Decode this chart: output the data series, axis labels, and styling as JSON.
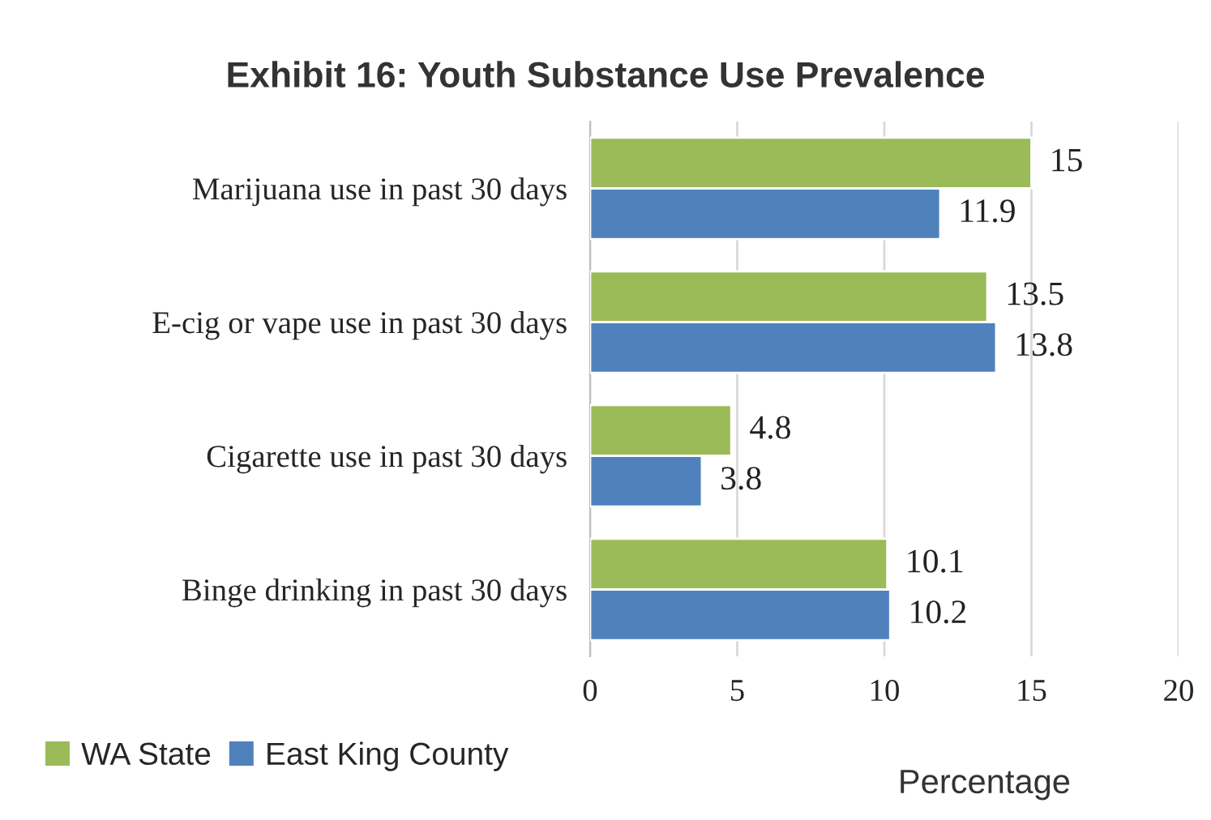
{
  "chart_data": {
    "type": "bar",
    "orientation": "horizontal",
    "title": "Exhibit 16: Youth Substance Use Prevalence",
    "xlabel": "Percentage",
    "categories": [
      "Marijuana use in past 30 days",
      "E-cig or vape use in past 30 days",
      "Cigarette use in past 30 days",
      "Binge drinking in past 30 days"
    ],
    "series": [
      {
        "name": "WA State",
        "color": "#9bbb59",
        "values": [
          15,
          13.5,
          4.8,
          10.1
        ]
      },
      {
        "name": "East King County",
        "color": "#4f81bd",
        "values": [
          11.9,
          13.8,
          3.8,
          10.2
        ]
      }
    ],
    "xlim": [
      0,
      20
    ],
    "xticks": [
      0,
      5,
      10,
      15,
      20
    ],
    "grid": "x",
    "legend": "bottom left",
    "data_labels": true
  }
}
